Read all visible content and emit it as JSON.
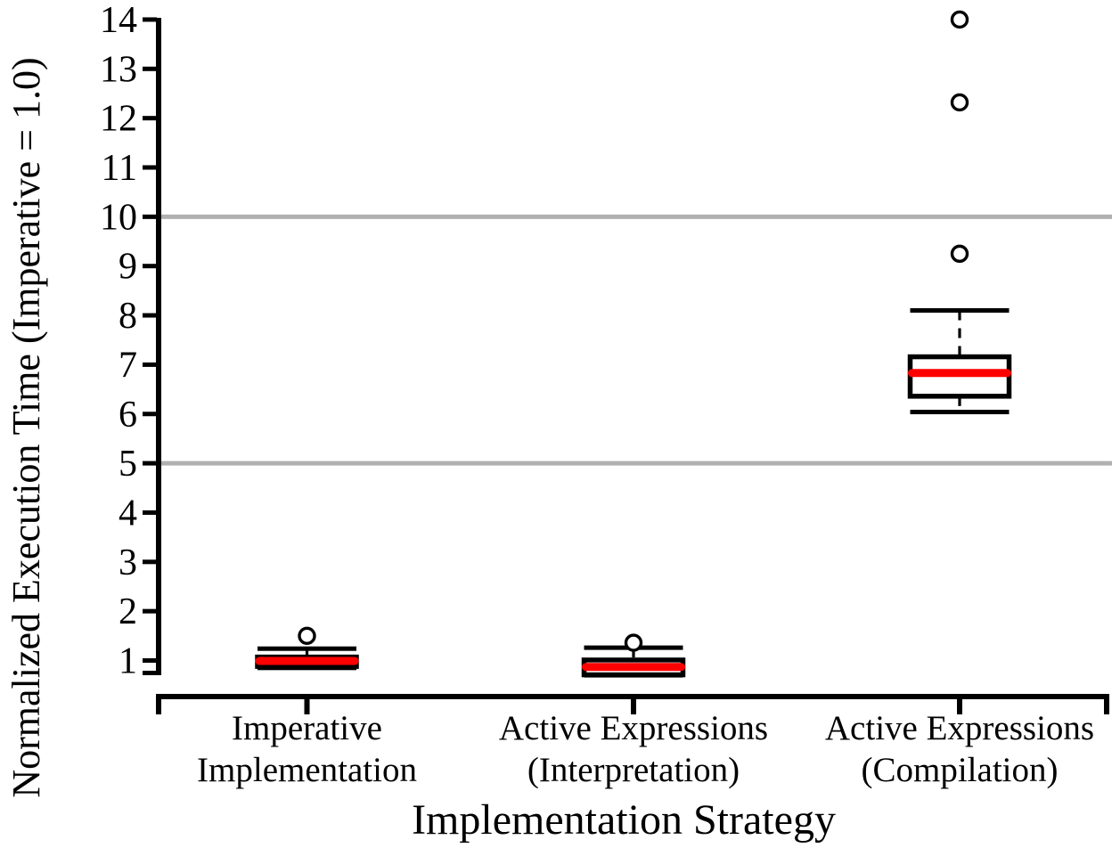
{
  "chart_data": {
    "type": "boxplot",
    "title": "",
    "xlabel": "Implementation Strategy",
    "ylabel": "Normalized Execution Time (Imperative = 1.0)",
    "ylim": [
      0.7,
      14.05
    ],
    "grid": "horizontal-only",
    "gridlines_y": [
      5,
      10
    ],
    "y_ticks": [
      "1",
      "2",
      "3",
      "4",
      "5",
      "6",
      "7",
      "8",
      "9",
      "10",
      "11",
      "12",
      "13",
      "14"
    ],
    "colors": {
      "median": "#ff0000",
      "box": "#000000",
      "axis": "#000000",
      "grid": "#b0b0b0",
      "box_fill": "#ffffff"
    },
    "categories": [
      {
        "label_lines": [
          "Imperative",
          "Implementation"
        ]
      },
      {
        "label_lines": [
          "Active Expressions",
          "(Interpretation)"
        ]
      },
      {
        "label_lines": [
          "Active Expressions",
          "(Compilation)"
        ]
      }
    ],
    "series": [
      {
        "name": "Imperative Implementation",
        "whisker_low": 0.85,
        "q1": 0.88,
        "median": 0.99,
        "q3": 1.07,
        "whisker_high": 1.24,
        "outliers": [
          1.5
        ]
      },
      {
        "name": "Active Expressions (Interpretation)",
        "whisker_low": 0.7,
        "q1": 0.71,
        "median": 0.87,
        "q3": 1.01,
        "whisker_high": 1.26,
        "outliers": [
          1.36
        ]
      },
      {
        "name": "Active Expressions (Compilation)",
        "whisker_low": 6.04,
        "q1": 6.36,
        "median": 6.83,
        "q3": 7.16,
        "whisker_high": 8.1,
        "outliers": [
          9.25,
          12.32,
          14.0
        ]
      }
    ]
  }
}
